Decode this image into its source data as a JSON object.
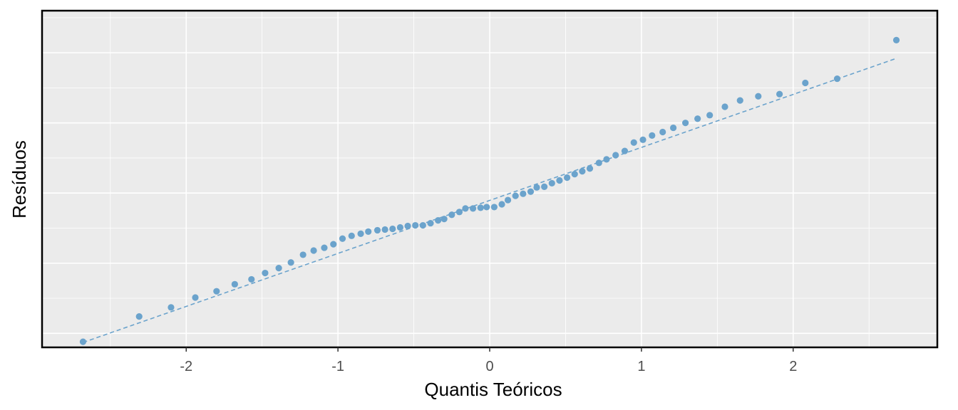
{
  "chart_data": {
    "type": "scatter",
    "title": "",
    "xlabel": "Quantis Teóricos",
    "ylabel": "Resíduos",
    "xlim": [
      -2.95,
      2.95
    ],
    "ylim": [
      -2.2,
      2.6
    ],
    "x_ticks": [
      -2,
      -1,
      0,
      1,
      2
    ],
    "x_tick_labels": [
      "-2",
      "-1",
      "0",
      "1",
      "2"
    ],
    "y_ticks": [],
    "grid": true,
    "legend": "none",
    "colors": {
      "points": "#6ba3cc",
      "reference_line": "#6ba3cc",
      "panel": "#ebebeb",
      "grid": "#ffffff",
      "border": "#000000"
    },
    "reference_line": {
      "x": [
        -2.68,
        2.68
      ],
      "y": [
        -2.13,
        1.92
      ]
    },
    "points": {
      "x": [
        -2.68,
        -2.31,
        -2.1,
        -1.94,
        -1.8,
        -1.68,
        -1.57,
        -1.48,
        -1.39,
        -1.31,
        -1.23,
        -1.16,
        -1.09,
        -1.03,
        -0.97,
        -0.91,
        -0.85,
        -0.8,
        -0.74,
        -0.69,
        -0.64,
        -0.59,
        -0.54,
        -0.49,
        -0.44,
        -0.39,
        -0.34,
        -0.3,
        -0.25,
        -0.2,
        -0.16,
        -0.11,
        -0.06,
        -0.02,
        0.03,
        0.08,
        0.12,
        0.17,
        0.22,
        0.27,
        0.31,
        0.36,
        0.41,
        0.46,
        0.51,
        0.56,
        0.61,
        0.66,
        0.72,
        0.77,
        0.83,
        0.89,
        0.95,
        1.01,
        1.07,
        1.14,
        1.21,
        1.29,
        1.37,
        1.45,
        1.55,
        1.65,
        1.77,
        1.91,
        2.08,
        2.29,
        2.68
      ],
      "y": [
        -2.12,
        -1.76,
        -1.63,
        -1.49,
        -1.4,
        -1.3,
        -1.23,
        -1.14,
        -1.07,
        -0.99,
        -0.88,
        -0.82,
        -0.78,
        -0.73,
        -0.65,
        -0.61,
        -0.58,
        -0.55,
        -0.53,
        -0.52,
        -0.51,
        -0.49,
        -0.47,
        -0.46,
        -0.46,
        -0.43,
        -0.39,
        -0.37,
        -0.31,
        -0.27,
        -0.22,
        -0.22,
        -0.21,
        -0.2,
        -0.2,
        -0.16,
        -0.1,
        -0.04,
        -0.01,
        0.02,
        0.08,
        0.09,
        0.14,
        0.18,
        0.22,
        0.27,
        0.31,
        0.35,
        0.43,
        0.48,
        0.54,
        0.6,
        0.72,
        0.76,
        0.82,
        0.87,
        0.93,
        1.0,
        1.06,
        1.11,
        1.23,
        1.32,
        1.38,
        1.41,
        1.57,
        1.63,
        2.18
      ]
    }
  }
}
